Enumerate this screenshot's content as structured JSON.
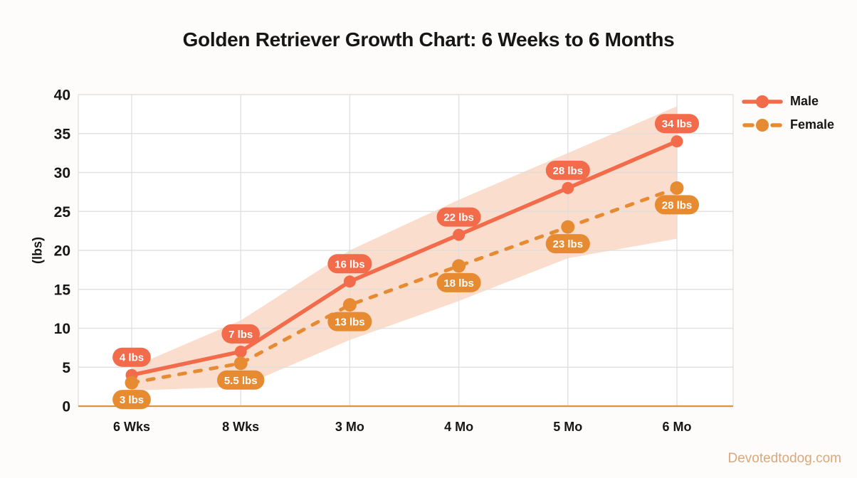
{
  "page": {
    "watermark": "Devotedtodog.com"
  },
  "chart_data": {
    "type": "line",
    "title": "Golden Retriever Growth Chart: 6 Weeks to 6 Months",
    "xlabel": "",
    "ylabel": "(lbs)",
    "categories": [
      "6 Wks",
      "8 Wks",
      "3 Mo",
      "4 Mo",
      "5 Mo",
      "6 Mo"
    ],
    "yticks": [
      0,
      5,
      10,
      15,
      20,
      25,
      30,
      35,
      40
    ],
    "ylim": [
      0,
      40
    ],
    "grid": true,
    "legend_position": "top-right",
    "series": [
      {
        "name": "Male",
        "style": "solid",
        "color": "#F26B4A",
        "values": [
          4,
          7,
          16,
          22,
          28,
          34
        ],
        "point_labels": [
          "4 lbs",
          "7 lbs",
          "16 lbs",
          "22 lbs",
          "28 lbs",
          "34 lbs"
        ],
        "label_position": "above"
      },
      {
        "name": "Female",
        "style": "dashed",
        "color": "#E78B33",
        "values": [
          3,
          5.5,
          13,
          18,
          23,
          28
        ],
        "point_labels": [
          "3 lbs",
          "5.5 lbs",
          "13 lbs",
          "18 lbs",
          "23 lbs",
          "28 lbs"
        ],
        "label_position": "below"
      }
    ],
    "band": {
      "label": "estimated-weight-range",
      "color": "#FADDCC",
      "upper": [
        5,
        11,
        20,
        26.5,
        32.5,
        38.5
      ],
      "lower": [
        2,
        2.5,
        8.5,
        13.5,
        19,
        21.5
      ]
    },
    "colors": {
      "grid": "#DDDDDD",
      "baseline": "#D9944A",
      "text": "#161616",
      "pill_text": "#FFFFFF",
      "watermark": "#D8A87E",
      "background": "#FDFCFA",
      "plot_background": "#FFFFFF"
    }
  }
}
